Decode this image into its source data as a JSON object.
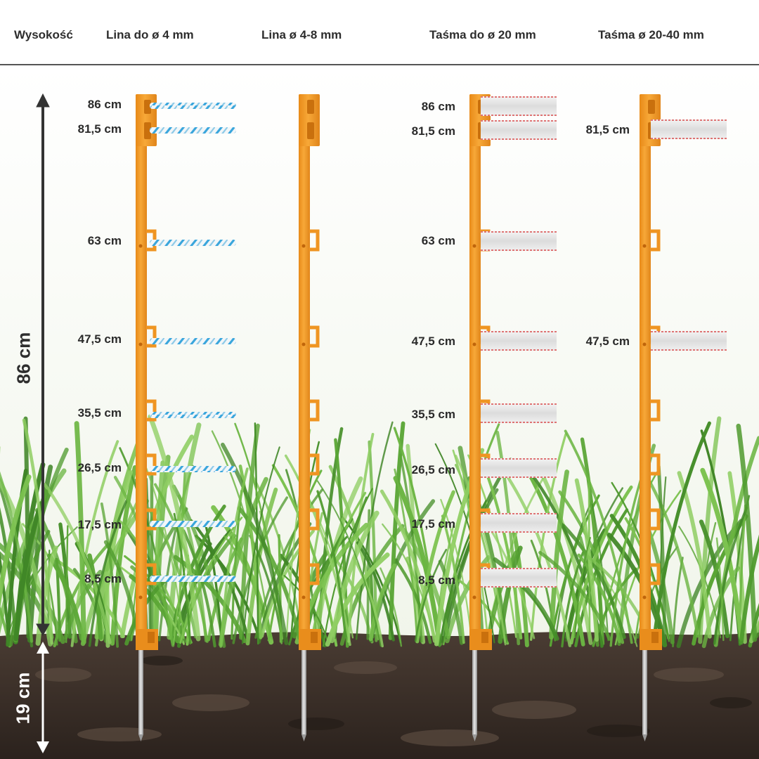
{
  "header": {
    "col_height": "Wysokość",
    "col_1": "Lina do ø 4 mm",
    "col_2": "Lina ø 4-8 mm",
    "col_3": "Taśma do ø 20 mm",
    "col_4": "Taśma ø 20-40 mm"
  },
  "dimensions": {
    "above_ground": "86 cm",
    "below_ground": "19 cm"
  },
  "heights_col1": [
    "86 cm",
    "81,5 cm",
    "63 cm",
    "47,5 cm",
    "35,5 cm",
    "26,5 cm",
    "17,5 cm",
    "8,5 cm"
  ],
  "heights_col3": [
    "86 cm",
    "81,5 cm",
    "63 cm",
    "47,5 cm",
    "35,5 cm",
    "26,5 cm",
    "17,5 cm",
    "8,5 cm"
  ],
  "heights_col4": [
    "81,5 cm",
    "47,5 cm"
  ],
  "colors": {
    "post": "#f39a2a",
    "post_dark": "#d77d12",
    "rope_blue": "#3aa6dc",
    "tape_edge": "#d84a4a",
    "soil": "#3a2f29",
    "grass": "#5da33a",
    "arrow": "#333333"
  }
}
